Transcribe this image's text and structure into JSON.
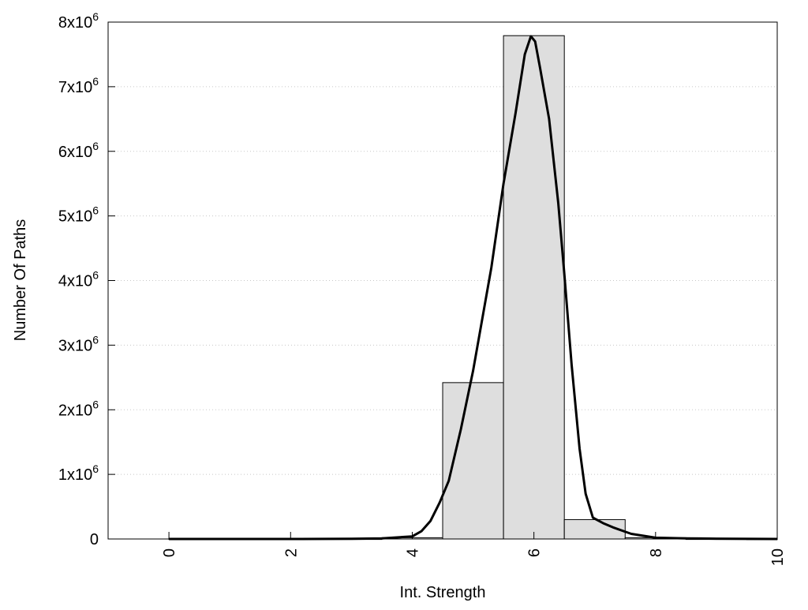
{
  "chart_data": {
    "type": "bar",
    "title": "",
    "xlabel": "Int. Strength",
    "ylabel": "Number Of Paths",
    "xlim": [
      -1,
      10
    ],
    "ylim": [
      0,
      8000000
    ],
    "grid": "horizontal dotted",
    "x_ticks": [
      0,
      2,
      4,
      6,
      8,
      10
    ],
    "x_tick_labels": [
      "0",
      "2",
      "4",
      "6",
      "8",
      "10"
    ],
    "y_ticks": [
      0,
      1000000,
      2000000,
      3000000,
      4000000,
      5000000,
      6000000,
      7000000,
      8000000
    ],
    "y_tick_labels": [
      {
        "base": "0",
        "exp": ""
      },
      {
        "base": "1x10",
        "exp": "6"
      },
      {
        "base": "2x10",
        "exp": "6"
      },
      {
        "base": "3x10",
        "exp": "6"
      },
      {
        "base": "4x10",
        "exp": "6"
      },
      {
        "base": "5x10",
        "exp": "6"
      },
      {
        "base": "6x10",
        "exp": "6"
      },
      {
        "base": "7x10",
        "exp": "6"
      },
      {
        "base": "8x10",
        "exp": "6"
      }
    ],
    "bars": {
      "centers": [
        0,
        1,
        2,
        3,
        4,
        5,
        6,
        7,
        8,
        9,
        10
      ],
      "width": 1,
      "values": [
        5000,
        5000,
        5000,
        5000,
        20000,
        2420000,
        7790000,
        300000,
        20000,
        5000,
        3000
      ],
      "color": "#dedede"
    },
    "fit_curve": {
      "x": [
        0,
        1,
        2,
        3,
        3.5,
        4.0,
        4.15,
        4.3,
        4.45,
        4.6,
        4.8,
        5.0,
        5.15,
        5.3,
        5.5,
        5.7,
        5.85,
        5.95,
        6.02,
        6.1,
        6.25,
        6.4,
        6.5,
        6.62,
        6.75,
        6.85,
        6.97,
        7.15,
        7.3,
        7.6,
        8.0,
        8.5,
        9,
        10
      ],
      "y": [
        0,
        0,
        0,
        2000,
        8000,
        40000,
        120000,
        280000,
        560000,
        900000,
        1700000,
        2600000,
        3400000,
        4200000,
        5500000,
        6600000,
        7500000,
        7780000,
        7700000,
        7300000,
        6500000,
        5200000,
        4100000,
        2700000,
        1400000,
        700000,
        330000,
        240000,
        180000,
        80000,
        20000,
        10000,
        5000,
        0
      ],
      "color": "#000000"
    }
  }
}
